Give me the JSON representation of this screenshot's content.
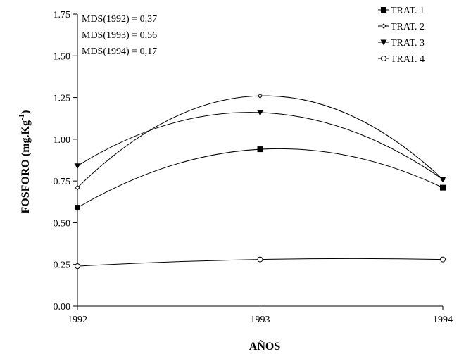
{
  "chart_data": {
    "type": "line",
    "xlabel": "AÑOS",
    "ylabel": "FOSFORO (mg.Kg",
    "ylabel_sup": "-1",
    "ylabel_close": ")",
    "x": [
      1992,
      1993,
      1994
    ],
    "x_tick_labels": [
      "1992",
      "1993",
      "1994"
    ],
    "ylim": [
      0,
      1.75
    ],
    "y_ticks": [
      0,
      0.25,
      0.5,
      0.75,
      1.0,
      1.25,
      1.5,
      1.75
    ],
    "y_tick_labels": [
      "0.00",
      "0.25",
      "0.50",
      "0.75",
      "1.00",
      "1.25",
      "1.50",
      "1.75"
    ],
    "grid": false,
    "legend_position": "top-right",
    "annotations": [
      "MDS(1992) = 0,37",
      "MDS(1993) = 0,56",
      "MDS(1994) = 0,17"
    ],
    "series": [
      {
        "name": "TRAT. 1",
        "marker": "filled-square",
        "values": [
          0.59,
          0.94,
          0.71
        ]
      },
      {
        "name": "TRAT. 2",
        "marker": "diamond",
        "values": [
          0.71,
          1.26,
          0.76
        ]
      },
      {
        "name": "TRAT. 3",
        "marker": "filled-triangle-down",
        "values": [
          0.84,
          1.16,
          0.76
        ]
      },
      {
        "name": "TRAT. 4",
        "marker": "open-circle",
        "values": [
          0.24,
          0.28,
          0.28
        ]
      }
    ]
  }
}
